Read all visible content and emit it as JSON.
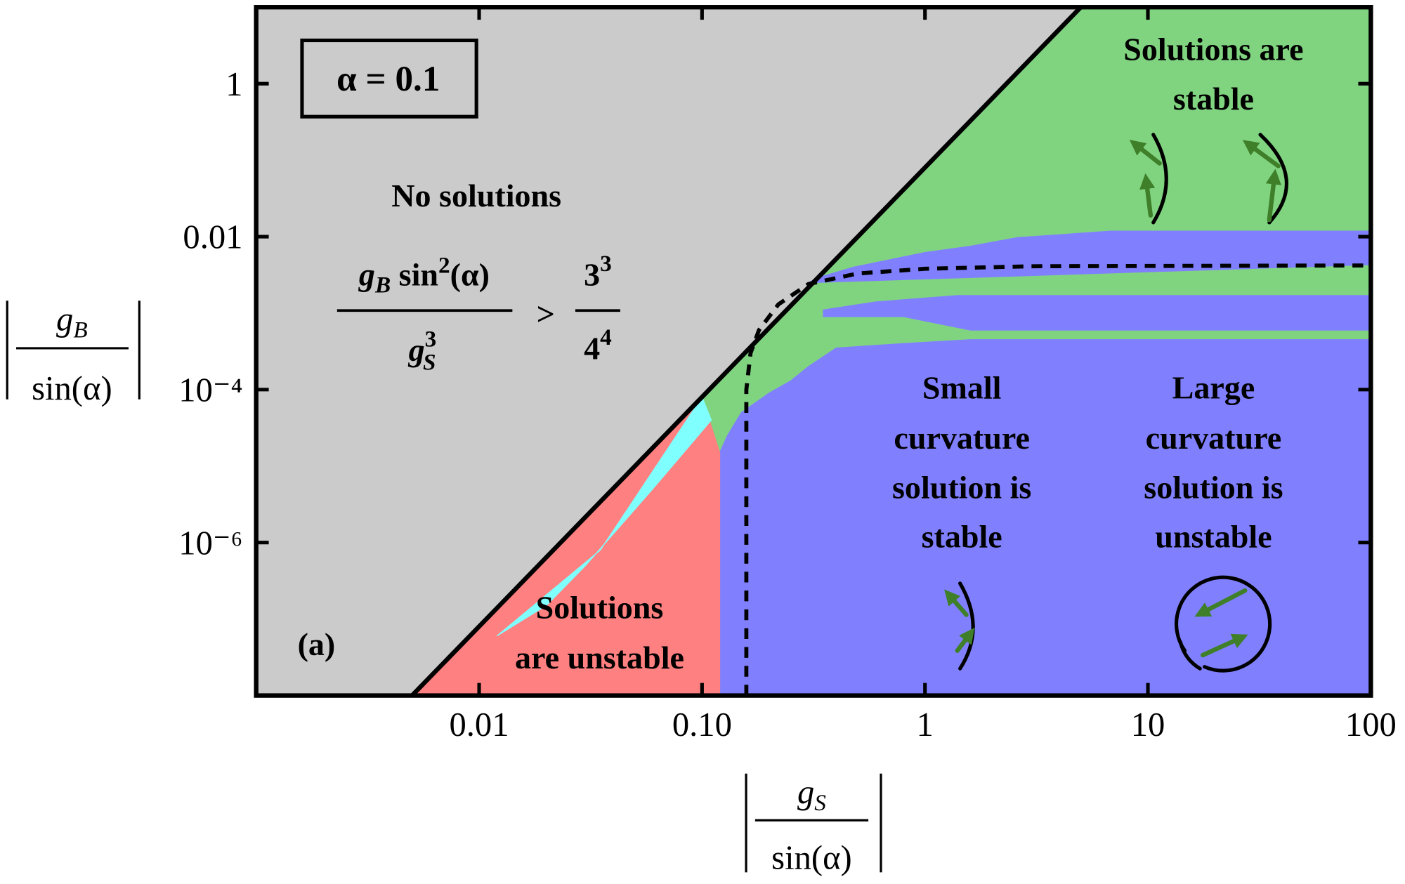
{
  "chart_data": {
    "type": "region",
    "xscale": "log",
    "yscale": "log",
    "xlim": [
      0.001,
      100
    ],
    "ylim": [
      1e-08,
      10
    ],
    "xticks": [
      0.01,
      {
        "value": 0.1,
        "label": "0.10"
      },
      1,
      10,
      100
    ],
    "yticks": [
      1,
      0.01,
      {
        "value": 0.0001,
        "label": "10⁻⁴"
      },
      {
        "value": 1e-06,
        "label": "10⁻⁶"
      }
    ],
    "x_label": {
      "symbol": "g",
      "subscript": "S",
      "denominator": "sin(α)"
    },
    "y_label": {
      "symbol": "g",
      "subscript": "B",
      "denominator": "sin(α)"
    },
    "annotation": "α = 0.1",
    "panel_label": "(a)",
    "regions": [
      {
        "color": "#cbcbcb",
        "x": [
          0.001,
          0.005,
          5,
          0.001
        ],
        "y": [
          1e-08,
          1e-08,
          10,
          10
        ]
      },
      {
        "color": "#80d480",
        "x": [
          0.1,
          5,
          100,
          100,
          0.1
        ],
        "y": [
          8e-05,
          10,
          10,
          1e-05,
          1e-05
        ]
      },
      {
        "color": "#8080ff",
        "x": [
          100,
          6.8,
          2.6,
          1.6,
          1,
          0.48,
          0.33,
          0.3,
          100
        ],
        "y": [
          0.0118,
          0.0118,
          0.0097,
          0.0075,
          0.0062,
          0.004,
          0.0029,
          0.0025,
          0.0043
        ]
      },
      {
        "color": "#8080ff",
        "x": [
          100,
          1.4,
          0.6,
          0.35,
          0.35,
          0.8,
          1.6,
          100
        ],
        "y": [
          0.0017,
          0.0017,
          0.0014,
          0.0011,
          0.0009,
          0.0009,
          0.0006,
          0.0006
        ]
      },
      {
        "color": "#8080ff",
        "x": [
          0.12,
          100,
          100,
          1.6,
          0.8,
          0.4,
          0.3,
          0.25,
          0.2,
          0.15,
          0.13,
          0.12
        ],
        "y": [
          1e-08,
          1e-08,
          0.00045,
          0.00045,
          0.0004,
          0.00035,
          0.0002,
          0.00013,
          9e-05,
          5e-05,
          2.5e-05,
          1.5e-05
        ]
      },
      {
        "color": "#ff8080",
        "x": [
          0.005,
          0.12,
          0.12,
          0.1
        ],
        "y": [
          1e-08,
          1e-08,
          1.5e-05,
          8e-05
        ]
      },
      {
        "color": "#80ffff",
        "x": [
          0.1,
          0.11,
          0.09,
          0.06,
          0.03,
          0.02,
          0.012,
          0.035
        ],
        "y": [
          8e-05,
          4e-05,
          2e-05,
          5e-06,
          5e-07,
          1.5e-07,
          6e-08,
          8e-07
        ]
      }
    ],
    "lines": [
      {
        "color": "#000000",
        "dashed": false,
        "x": [
          0.005,
          5
        ],
        "y": [
          1e-08,
          10
        ]
      },
      {
        "color": "#000000",
        "dashed": true,
        "x": [
          0.158,
          0.158,
          0.165,
          0.18,
          0.22,
          0.3,
          0.5,
          1,
          3,
          100
        ],
        "y": [
          1e-08,
          0.0001,
          0.0003,
          0.0006,
          0.0013,
          0.0024,
          0.0033,
          0.0038,
          0.0041,
          0.0042
        ]
      }
    ],
    "formula": {
      "lhs_numerator": {
        "symbol": "g",
        "subscript": "B",
        "function": " sin",
        "power": "2",
        "argument": "(α)"
      },
      "lhs_denominator": {
        "symbol": "g",
        "subscript": "S",
        "power": "3"
      },
      "relation": ">",
      "rhs_numerator": {
        "base": "3",
        "power": "3"
      },
      "rhs_denominator": {
        "base": "4",
        "power": "4"
      }
    },
    "region_labels": [
      {
        "lines": [
          "No solutions"
        ]
      },
      {
        "lines": [
          "Solutions are",
          "stable"
        ]
      },
      {
        "lines": [
          "Small",
          "curvature",
          "solution is",
          "stable"
        ]
      },
      {
        "lines": [
          "Large",
          "curvature",
          "solution is",
          "unstable"
        ]
      },
      {
        "lines": [
          "Solutions",
          "are unstable"
        ]
      }
    ]
  }
}
